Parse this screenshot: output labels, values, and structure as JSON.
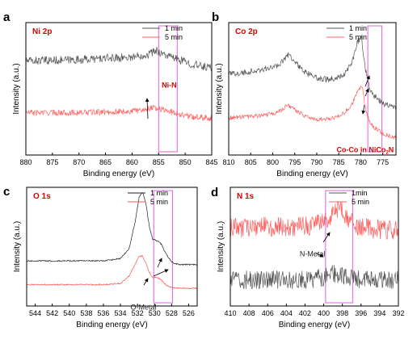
{
  "chart_data": [
    {
      "type": "line",
      "panel_letter": "a",
      "title": "Ni 2p",
      "xlabel": "Binding energy (eV)",
      "ylabel": "Intensity (a.u.)",
      "xlim": [
        880,
        845
      ],
      "xticks": [
        880,
        875,
        870,
        865,
        860,
        855,
        850,
        845
      ],
      "ylim": [
        0,
        1
      ],
      "legend_position": "top-right",
      "series": [
        {
          "name": "1 min",
          "color": "#555555",
          "base": 0.71,
          "noise": 0.022,
          "x": [
            880,
            870,
            860,
            857,
            855.5,
            854,
            852,
            849,
            847,
            845
          ],
          "y": [
            0.71,
            0.72,
            0.74,
            0.76,
            0.79,
            0.76,
            0.73,
            0.69,
            0.67,
            0.66
          ]
        },
        {
          "name": "5 min",
          "color": "#ff6060",
          "base": 0.32,
          "noise": 0.016,
          "x": [
            880,
            870,
            860,
            857,
            856,
            855,
            853,
            851,
            849,
            845
          ],
          "y": [
            0.32,
            0.32,
            0.33,
            0.35,
            0.36,
            0.35,
            0.33,
            0.31,
            0.29,
            0.28
          ]
        }
      ],
      "highlight": {
        "x": [
          855,
          851.5
        ],
        "color": "#e060e0"
      },
      "annotations": [
        {
          "text": "Ni-N",
          "x": 853,
          "y": 0.51,
          "color": "#dd0000"
        }
      ]
    },
    {
      "type": "line",
      "panel_letter": "b",
      "title": "Co 2p",
      "xlabel": "Binding energy (eV)",
      "ylabel": "Intensity (a.u.)",
      "xlim": [
        810,
        772
      ],
      "xticks": [
        810,
        805,
        800,
        795,
        790,
        785,
        780,
        775
      ],
      "ylim": [
        0,
        1
      ],
      "legend_position": "top-right",
      "series": [
        {
          "name": "1 min",
          "color": "#555555",
          "base": 0.61,
          "noise": 0.016,
          "x": [
            810,
            805,
            800,
            798,
            796.5,
            795,
            793,
            790,
            787,
            784,
            782,
            780.7,
            779.8,
            779,
            778,
            777,
            775,
            772
          ],
          "y": [
            0.61,
            0.63,
            0.66,
            0.7,
            0.76,
            0.71,
            0.63,
            0.58,
            0.57,
            0.6,
            0.7,
            0.86,
            0.88,
            0.66,
            0.5,
            0.45,
            0.39,
            0.35
          ]
        },
        {
          "name": "5 min",
          "color": "#ff6060",
          "base": 0.28,
          "noise": 0.012,
          "x": [
            810,
            805,
            800,
            798,
            796.5,
            795,
            793,
            790,
            787,
            784,
            782,
            780.5,
            779.7,
            779,
            778,
            777,
            775,
            772
          ],
          "y": [
            0.28,
            0.29,
            0.31,
            0.34,
            0.38,
            0.34,
            0.3,
            0.27,
            0.27,
            0.31,
            0.38,
            0.5,
            0.53,
            0.36,
            0.25,
            0.21,
            0.16,
            0.13
          ]
        }
      ],
      "highlight": {
        "x": [
          778.4,
          775.2
        ],
        "color": "#e060e0"
      },
      "annotations": [
        {
          "text": "Co-Co in NiCo",
          "sub": "2",
          "tail": "N",
          "x": 779,
          "y": 0.02,
          "color": "#dd0000"
        }
      ]
    },
    {
      "type": "line",
      "panel_letter": "c",
      "title": "O 1s",
      "xlabel": "Binding energy (eV)",
      "ylabel": "Intensity (a.u.)",
      "xlim": [
        545,
        525
      ],
      "xticks": [
        544,
        542,
        540,
        538,
        536,
        534,
        532,
        530,
        528,
        526
      ],
      "ylim": [
        0,
        1
      ],
      "legend_position": "top-right",
      "series": [
        {
          "name": "1 min",
          "color": "#222222",
          "base": 0.38,
          "noise": 0.004,
          "x": [
            545,
            536,
            534,
            533,
            532.3,
            531.8,
            531.4,
            531,
            530.6,
            530.2,
            529.7,
            529.2,
            528.8,
            528.3,
            527.8,
            527,
            526,
            525
          ],
          "y": [
            0.38,
            0.38,
            0.4,
            0.48,
            0.7,
            0.92,
            0.96,
            0.86,
            0.66,
            0.56,
            0.55,
            0.52,
            0.46,
            0.4,
            0.36,
            0.35,
            0.35,
            0.35
          ]
        },
        {
          "name": "5 min",
          "color": "#ff5050",
          "base": 0.18,
          "noise": 0.004,
          "x": [
            545,
            536,
            534,
            533,
            532.3,
            531.8,
            531.4,
            531,
            530.6,
            530.2,
            529.7,
            529.2,
            528.7,
            528.2,
            527.5,
            526,
            525
          ],
          "y": [
            0.18,
            0.18,
            0.19,
            0.25,
            0.35,
            0.42,
            0.42,
            0.36,
            0.28,
            0.24,
            0.24,
            0.22,
            0.18,
            0.16,
            0.15,
            0.15,
            0.15
          ]
        }
      ],
      "highlight": {
        "x": [
          530.1,
          527.9
        ],
        "color": "#e060e0"
      },
      "annotations": [
        {
          "text": "O-Metal",
          "x": 531.3,
          "y": -0.03,
          "color": "#222222"
        }
      ]
    },
    {
      "type": "line",
      "panel_letter": "d",
      "title": "N 1s",
      "xlabel": "Binding energy (eV)",
      "ylabel": "Intensity (a.u.)",
      "xlim": [
        410,
        392
      ],
      "xticks": [
        410,
        408,
        406,
        404,
        402,
        400,
        398,
        396,
        394,
        392
      ],
      "ylim": [
        0,
        1
      ],
      "legend_position": "top-right",
      "series": [
        {
          "name": "1min",
          "color": "#555555",
          "base": 0.22,
          "noise": 0.055,
          "x": [
            410,
            402,
            400,
            399,
            398,
            397,
            396,
            392
          ],
          "y": [
            0.22,
            0.22,
            0.24,
            0.27,
            0.26,
            0.23,
            0.22,
            0.22
          ]
        },
        {
          "name": "5 min",
          "color": "#ff6060",
          "base": 0.66,
          "noise": 0.06,
          "x": [
            410,
            402,
            400,
            399,
            398.3,
            397.5,
            396.5,
            395,
            392
          ],
          "y": [
            0.66,
            0.67,
            0.7,
            0.78,
            0.82,
            0.74,
            0.67,
            0.65,
            0.64
          ]
        }
      ],
      "highlight": {
        "x": [
          399.8,
          396.9
        ],
        "color": "#e060e0"
      },
      "annotations": [
        {
          "text": "N-Metal",
          "x": 401.2,
          "y": 0.42,
          "color": "#222222"
        }
      ]
    }
  ]
}
